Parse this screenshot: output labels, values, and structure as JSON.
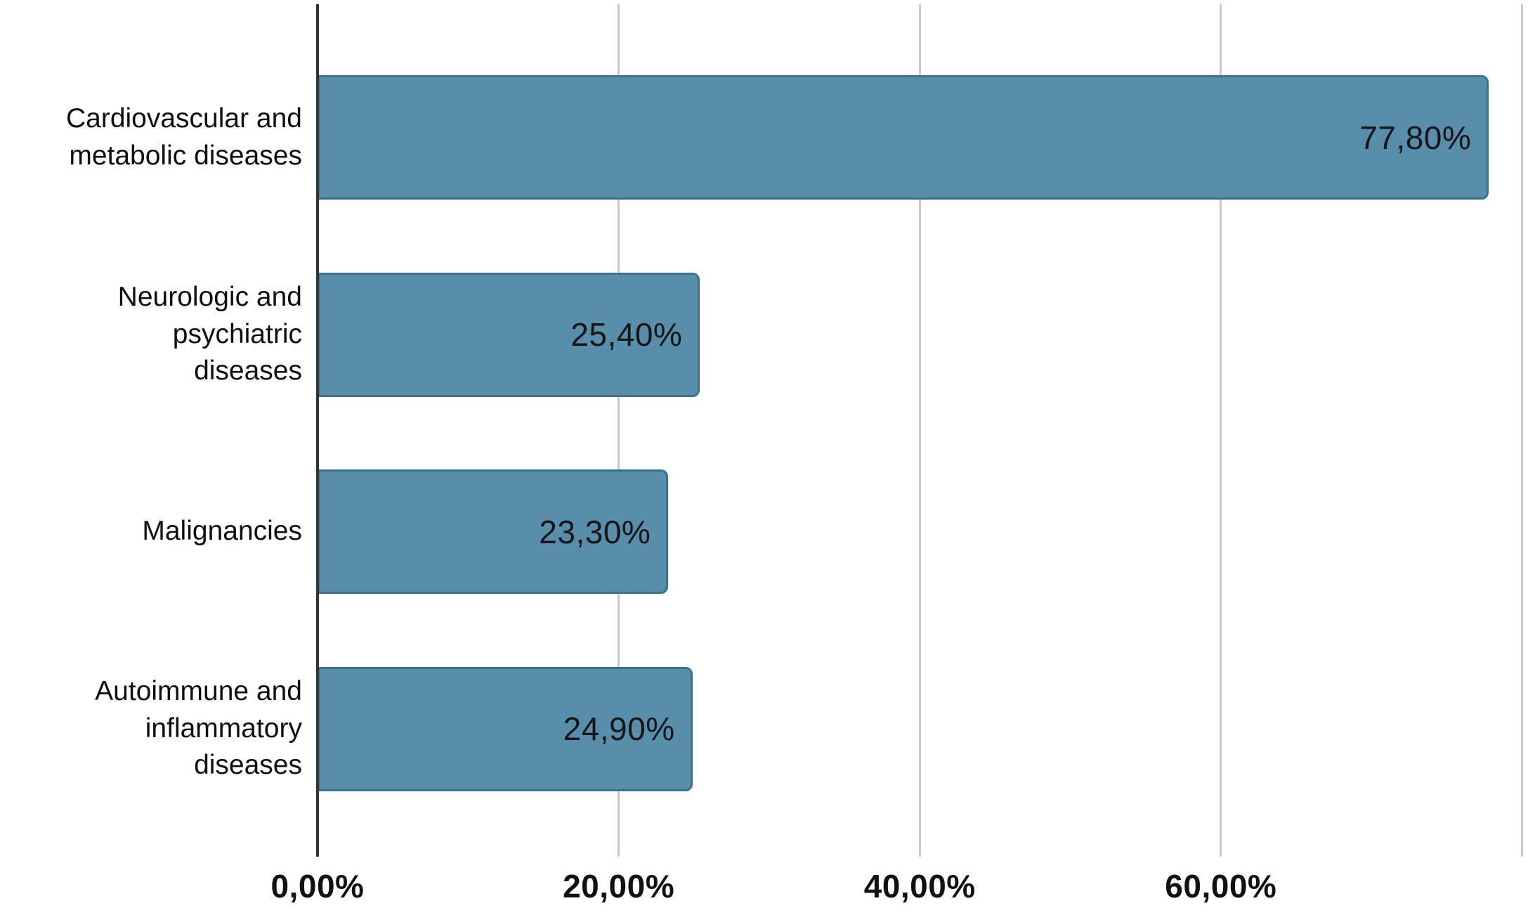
{
  "chart_data": {
    "type": "bar",
    "orientation": "horizontal",
    "title": "",
    "xlabel": "",
    "ylabel": "",
    "categories": [
      "Cardiovascular and\nmetabolic diseases",
      "Neurologic and\npsychiatric\ndiseases",
      "Malignancies",
      "Autoimmune and\ninflammatory\ndiseases"
    ],
    "values": [
      77.8,
      25.4,
      23.3,
      24.9
    ],
    "value_labels": [
      "77,80%",
      "25,40%",
      "23,30%",
      "24,90%"
    ],
    "x_ticks": [
      {
        "value": 0,
        "label": "0,00%"
      },
      {
        "value": 20,
        "label": "20,00%"
      },
      {
        "value": 40,
        "label": "40,00%"
      },
      {
        "value": 60,
        "label": "60,00%"
      },
      {
        "value": 80,
        "label": ""
      }
    ],
    "xlim": [
      0,
      80.4
    ],
    "grid": true,
    "legend": false,
    "number_format": "comma-decimal-percent",
    "colors": {
      "bar_fill": "#588DAB",
      "bar_border": "#3A7290",
      "gridline": "#C9C9C9",
      "axis_line": "#333333",
      "category_text": "#0F0F0F",
      "value_text": "#161616",
      "tick_text": "#111111",
      "background": "#FFFFFF"
    }
  }
}
